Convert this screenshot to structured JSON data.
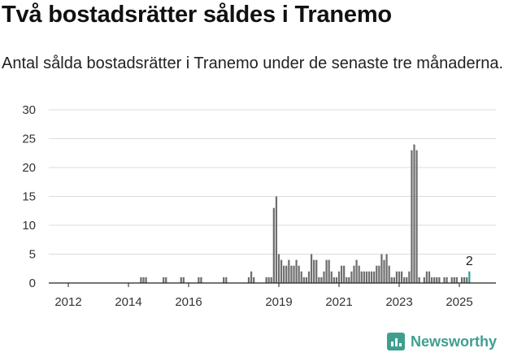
{
  "title": "Två bostadsrätter såldes i Tranemo",
  "subtitle": "Antal sålda bostadsrätter i Tranemo under de senaste tre månaderna.",
  "brand": {
    "name": "Newsworthy",
    "color": "#3f9f8f"
  },
  "chart_data": {
    "type": "bar",
    "ylim": [
      0,
      30
    ],
    "yticks": [
      0,
      5,
      10,
      15,
      20,
      25,
      30
    ],
    "xticks": [
      {
        "label": "2012",
        "date": "2012-01"
      },
      {
        "label": "2014",
        "date": "2014-01"
      },
      {
        "label": "2016",
        "date": "2016-01"
      },
      {
        "label": "2019",
        "date": "2019-01"
      },
      {
        "label": "2021",
        "date": "2021-01"
      },
      {
        "label": "2023",
        "date": "2023-01"
      },
      {
        "label": "2025",
        "date": "2025-01"
      }
    ],
    "grid": true,
    "bar_color": "#6e6e6e",
    "highlight_color": "#2aa198",
    "highlight_label": "2",
    "series": [
      {
        "values": [
          {
            "date": "2014-06",
            "value": 1
          },
          {
            "date": "2014-07",
            "value": 1
          },
          {
            "date": "2014-08",
            "value": 1
          },
          {
            "date": "2015-03",
            "value": 1
          },
          {
            "date": "2015-04",
            "value": 1
          },
          {
            "date": "2015-10",
            "value": 1
          },
          {
            "date": "2015-11",
            "value": 1
          },
          {
            "date": "2016-05",
            "value": 1
          },
          {
            "date": "2016-06",
            "value": 1
          },
          {
            "date": "2017-03",
            "value": 1
          },
          {
            "date": "2017-04",
            "value": 1
          },
          {
            "date": "2018-01",
            "value": 1
          },
          {
            "date": "2018-02",
            "value": 2
          },
          {
            "date": "2018-03",
            "value": 1
          },
          {
            "date": "2018-08",
            "value": 1
          },
          {
            "date": "2018-09",
            "value": 1
          },
          {
            "date": "2018-10",
            "value": 1
          },
          {
            "date": "2018-11",
            "value": 13
          },
          {
            "date": "2018-12",
            "value": 15
          },
          {
            "date": "2019-01",
            "value": 5
          },
          {
            "date": "2019-02",
            "value": 4
          },
          {
            "date": "2019-03",
            "value": 3
          },
          {
            "date": "2019-04",
            "value": 3
          },
          {
            "date": "2019-05",
            "value": 4
          },
          {
            "date": "2019-06",
            "value": 3
          },
          {
            "date": "2019-07",
            "value": 3
          },
          {
            "date": "2019-08",
            "value": 4
          },
          {
            "date": "2019-09",
            "value": 3
          },
          {
            "date": "2019-10",
            "value": 2
          },
          {
            "date": "2019-11",
            "value": 1
          },
          {
            "date": "2019-12",
            "value": 1
          },
          {
            "date": "2020-01",
            "value": 2
          },
          {
            "date": "2020-02",
            "value": 5
          },
          {
            "date": "2020-03",
            "value": 4
          },
          {
            "date": "2020-04",
            "value": 4
          },
          {
            "date": "2020-05",
            "value": 1
          },
          {
            "date": "2020-06",
            "value": 1
          },
          {
            "date": "2020-07",
            "value": 2
          },
          {
            "date": "2020-08",
            "value": 4
          },
          {
            "date": "2020-09",
            "value": 4
          },
          {
            "date": "2020-10",
            "value": 2
          },
          {
            "date": "2020-11",
            "value": 1
          },
          {
            "date": "2020-12",
            "value": 1
          },
          {
            "date": "2021-01",
            "value": 2
          },
          {
            "date": "2021-02",
            "value": 3
          },
          {
            "date": "2021-03",
            "value": 3
          },
          {
            "date": "2021-04",
            "value": 1
          },
          {
            "date": "2021-05",
            "value": 1
          },
          {
            "date": "2021-06",
            "value": 2
          },
          {
            "date": "2021-07",
            "value": 3
          },
          {
            "date": "2021-08",
            "value": 4
          },
          {
            "date": "2021-09",
            "value": 3
          },
          {
            "date": "2021-10",
            "value": 2
          },
          {
            "date": "2021-11",
            "value": 2
          },
          {
            "date": "2021-12",
            "value": 2
          },
          {
            "date": "2022-01",
            "value": 2
          },
          {
            "date": "2022-02",
            "value": 2
          },
          {
            "date": "2022-03",
            "value": 2
          },
          {
            "date": "2022-04",
            "value": 3
          },
          {
            "date": "2022-05",
            "value": 3
          },
          {
            "date": "2022-06",
            "value": 5
          },
          {
            "date": "2022-07",
            "value": 4
          },
          {
            "date": "2022-08",
            "value": 5
          },
          {
            "date": "2022-09",
            "value": 3
          },
          {
            "date": "2022-10",
            "value": 1
          },
          {
            "date": "2022-11",
            "value": 1
          },
          {
            "date": "2022-12",
            "value": 2
          },
          {
            "date": "2023-01",
            "value": 2
          },
          {
            "date": "2023-02",
            "value": 2
          },
          {
            "date": "2023-03",
            "value": 1
          },
          {
            "date": "2023-04",
            "value": 1
          },
          {
            "date": "2023-05",
            "value": 2
          },
          {
            "date": "2023-06",
            "value": 23
          },
          {
            "date": "2023-07",
            "value": 24
          },
          {
            "date": "2023-08",
            "value": 23
          },
          {
            "date": "2023-09",
            "value": 1
          },
          {
            "date": "2023-11",
            "value": 1
          },
          {
            "date": "2023-12",
            "value": 2
          },
          {
            "date": "2024-01",
            "value": 2
          },
          {
            "date": "2024-02",
            "value": 1
          },
          {
            "date": "2024-03",
            "value": 1
          },
          {
            "date": "2024-04",
            "value": 1
          },
          {
            "date": "2024-05",
            "value": 1
          },
          {
            "date": "2024-07",
            "value": 1
          },
          {
            "date": "2024-08",
            "value": 1
          },
          {
            "date": "2024-10",
            "value": 1
          },
          {
            "date": "2024-11",
            "value": 1
          },
          {
            "date": "2024-12",
            "value": 1
          },
          {
            "date": "2025-02",
            "value": 1
          },
          {
            "date": "2025-03",
            "value": 1
          },
          {
            "date": "2025-04",
            "value": 1
          },
          {
            "date": "2025-05",
            "value": 2,
            "highlight": true
          }
        ]
      }
    ]
  }
}
